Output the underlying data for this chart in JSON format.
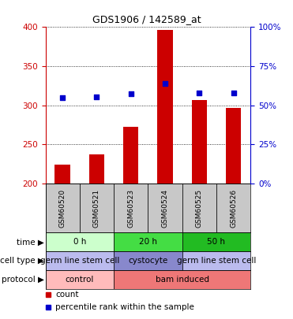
{
  "title": "GDS1906 / 142589_at",
  "samples": [
    "GSM60520",
    "GSM60521",
    "GSM60523",
    "GSM60524",
    "GSM60525",
    "GSM60526"
  ],
  "counts": [
    224,
    237,
    273,
    396,
    307,
    297
  ],
  "percentiles": [
    310,
    311,
    315,
    328,
    316,
    316
  ],
  "ylim_left": [
    200,
    400
  ],
  "ylim_right": [
    0,
    100
  ],
  "yticks_left": [
    200,
    250,
    300,
    350,
    400
  ],
  "yticks_right": [
    0,
    25,
    50,
    75,
    100
  ],
  "ytick_labels_right": [
    "0%",
    "25%",
    "50%",
    "75%",
    "100%"
  ],
  "bar_color": "#cc0000",
  "dot_color": "#0000cc",
  "bar_width": 0.45,
  "time_groups": [
    {
      "label": "0 h",
      "span": [
        0,
        2
      ],
      "color": "#ccffcc"
    },
    {
      "label": "20 h",
      "span": [
        2,
        4
      ],
      "color": "#44dd44"
    },
    {
      "label": "50 h",
      "span": [
        4,
        6
      ],
      "color": "#22bb22"
    }
  ],
  "cell_type_groups": [
    {
      "label": "germ line stem cell",
      "span": [
        0,
        2
      ],
      "color": "#bbbbee"
    },
    {
      "label": "cystocyte",
      "span": [
        2,
        4
      ],
      "color": "#8888cc"
    },
    {
      "label": "germ line stem cell",
      "span": [
        4,
        6
      ],
      "color": "#bbbbee"
    }
  ],
  "protocol_groups": [
    {
      "label": "control",
      "span": [
        0,
        2
      ],
      "color": "#ffbbbb"
    },
    {
      "label": "bam induced",
      "span": [
        2,
        6
      ],
      "color": "#ee7777"
    }
  ],
  "row_labels": [
    "time",
    "cell type",
    "protocol"
  ],
  "legend_items": [
    {
      "color": "#cc0000",
      "label": "count"
    },
    {
      "color": "#0000cc",
      "label": "percentile rank within the sample"
    }
  ],
  "left_axis_color": "#cc0000",
  "right_axis_color": "#0000cc",
  "sample_box_color": "#c8c8c8",
  "bg_color": "#ffffff",
  "title_fontsize": 9,
  "tick_fontsize": 7.5,
  "row_label_fontsize": 7.5,
  "sample_fontsize": 6.5,
  "row_text_fontsize": 7.5,
  "legend_fontsize": 7.5
}
